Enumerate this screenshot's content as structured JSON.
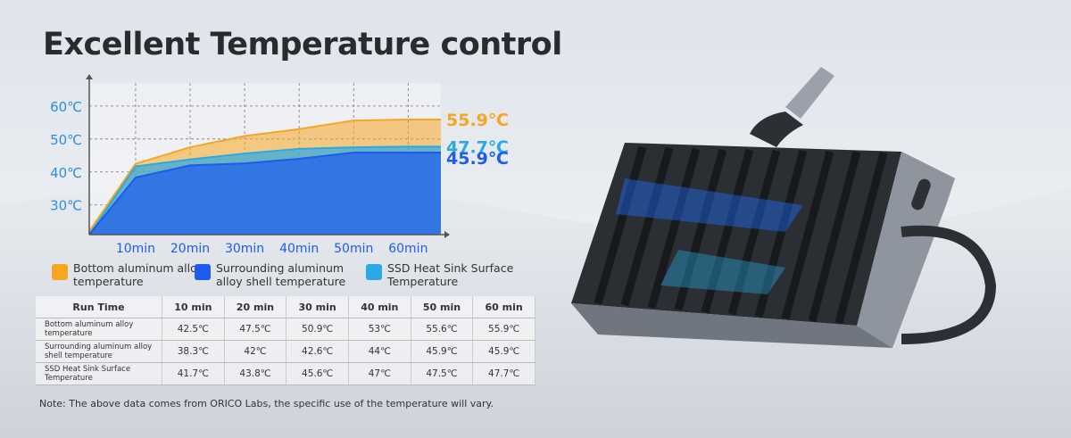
{
  "title": "Excellent Temperature control",
  "chart_data": {
    "type": "area",
    "x": [
      1.5,
      10,
      20,
      30,
      40,
      50,
      60,
      66
    ],
    "xlim": [
      1.5,
      66
    ],
    "xticks": [
      {
        "value": 10,
        "label": "10min"
      },
      {
        "value": 20,
        "label": "20min"
      },
      {
        "value": 30,
        "label": "30min"
      },
      {
        "value": 40,
        "label": "40min"
      },
      {
        "value": 50,
        "label": "50min"
      },
      {
        "value": 60,
        "label": "60min"
      }
    ],
    "ylim": [
      21,
      67
    ],
    "yticks": [
      {
        "value": 30,
        "label": "30℃"
      },
      {
        "value": 40,
        "label": "40℃"
      },
      {
        "value": 50,
        "label": "50℃"
      },
      {
        "value": 60,
        "label": "60℃"
      }
    ],
    "grid": true,
    "series": [
      {
        "name": "Bottom aluminum alloy temperature",
        "color": "#f5a623",
        "values": [
          22,
          42.5,
          47.5,
          50.9,
          53,
          55.6,
          55.9,
          55.9
        ],
        "value_labels": [
          null,
          null,
          null,
          null,
          null,
          null,
          null,
          "55.9℃"
        ]
      },
      {
        "name": "SSD Heat Sink Surface Temperature",
        "color": "#2aa9e6",
        "values": [
          21,
          41.7,
          43.8,
          45.6,
          47,
          47.5,
          47.7,
          47.7
        ],
        "value_labels": [
          null,
          null,
          null,
          null,
          null,
          null,
          null,
          "47.7℃"
        ]
      },
      {
        "name": "Surrounding aluminum alloy shell temperature",
        "color": "#1d5cf0",
        "values": [
          21,
          38.3,
          42,
          42.6,
          44,
          45.9,
          45.9,
          45.9
        ],
        "value_labels": [
          null,
          null,
          null,
          null,
          null,
          null,
          null,
          "45.9℃"
        ]
      }
    ]
  },
  "table": {
    "header": [
      "Run Time",
      "10 min",
      "20 min",
      "30 min",
      "40 min",
      "50 min",
      "60 min"
    ],
    "rows": [
      [
        "Bottom aluminum alloy temperature",
        "42.5℃",
        "47.5℃",
        "50.9℃",
        "53℃",
        "55.6℃",
        "55.9℃"
      ],
      [
        "Surrounding aluminum alloy shell temperature",
        "38.3℃",
        "42℃",
        "42.6℃",
        "44℃",
        "45.9℃",
        "45.9℃"
      ],
      [
        "SSD Heat Sink Surface Temperature",
        "41.7℃",
        "43.8℃",
        "45.6℃",
        "47℃",
        "47.5℃",
        "47.7℃"
      ]
    ]
  },
  "note": "Note: The above data comes from ORICO Labs, the specific use of the temperature will vary."
}
